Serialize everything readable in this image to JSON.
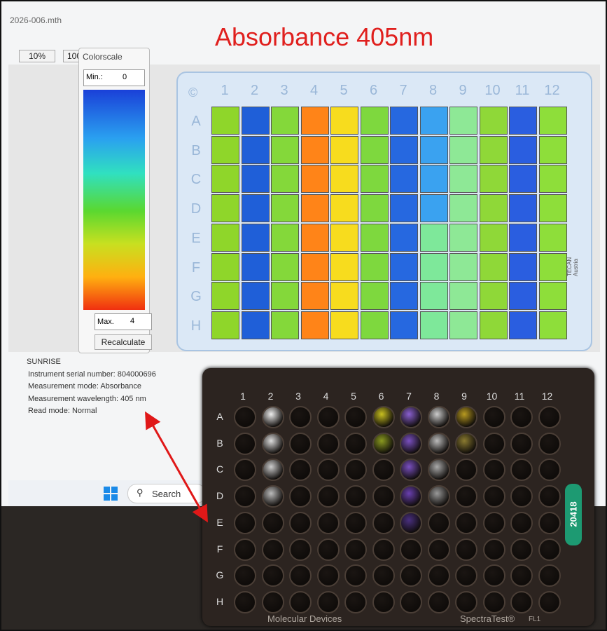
{
  "annotation": {
    "title": "Absorbance 405nm"
  },
  "window": {
    "filename": "2026-006.mth",
    "zoom_buttons": [
      "10%",
      "100"
    ]
  },
  "colorscale": {
    "title": "Colorscale",
    "min_label": "Min.:",
    "min_value": "0",
    "max_label": "Max.",
    "max_value": "4",
    "button": "Recalculate"
  },
  "plate_view": {
    "corner": "©",
    "columns": [
      "1",
      "2",
      "3",
      "4",
      "5",
      "6",
      "7",
      "8",
      "9",
      "10",
      "11",
      "12"
    ],
    "rows": [
      "A",
      "B",
      "C",
      "D",
      "E",
      "F",
      "G",
      "H"
    ],
    "maker": "TECAN Austria",
    "well_colors": [
      [
        "#8fd62a",
        "#1f5fd8",
        "#84d83a",
        "#ff8418",
        "#f7dc1e",
        "#7ed83e",
        "#2668e0",
        "#3aa2f0",
        "#8ee896",
        "#8fd838",
        "#2a5ee0",
        "#8ede3a"
      ],
      [
        "#8fd62a",
        "#1f5fd8",
        "#84d83a",
        "#ff8418",
        "#f7dc1e",
        "#7ed83e",
        "#2668e0",
        "#3aa2f0",
        "#8ee896",
        "#8fd838",
        "#2a5ee0",
        "#8ede3a"
      ],
      [
        "#8fd62a",
        "#1f5fd8",
        "#84d83a",
        "#ff8418",
        "#f7dc1e",
        "#7ed83e",
        "#2668e0",
        "#3aa2f0",
        "#8ee896",
        "#8fd838",
        "#2a5ee0",
        "#8ede3a"
      ],
      [
        "#8fd62a",
        "#1f5fd8",
        "#84d83a",
        "#ff8418",
        "#f7dc1e",
        "#7ed83e",
        "#2668e0",
        "#3aa2f0",
        "#8ee896",
        "#8fd838",
        "#2a5ee0",
        "#8ede3a"
      ],
      [
        "#8fd62a",
        "#1f5fd8",
        "#84d83a",
        "#ff8418",
        "#f7dc1e",
        "#7ed83e",
        "#2668e0",
        "#7ee89a",
        "#8ee896",
        "#8fd838",
        "#2a5ee0",
        "#8ede3a"
      ],
      [
        "#8fd62a",
        "#1f5fd8",
        "#84d83a",
        "#ff8418",
        "#f7dc1e",
        "#7ed83e",
        "#2668e0",
        "#7ee89a",
        "#8ee896",
        "#8fd838",
        "#2a5ee0",
        "#8ede3a"
      ],
      [
        "#8fd62a",
        "#1f5fd8",
        "#84d83a",
        "#ff8418",
        "#f7dc1e",
        "#7ed83e",
        "#2668e0",
        "#7ee89a",
        "#8ee896",
        "#8fd838",
        "#2a5ee0",
        "#8ede3a"
      ],
      [
        "#8fd62a",
        "#1f5fd8",
        "#84d83a",
        "#ff8418",
        "#f7dc1e",
        "#7ed83e",
        "#2668e0",
        "#7ee89a",
        "#8ee896",
        "#8fd838",
        "#2a5ee0",
        "#8ede3a"
      ]
    ]
  },
  "info": {
    "lines": [
      "SUNRISE",
      "Instrument serial number: 804000696",
      "Measurement mode: Absorbance",
      "Measurement wavelength: 405 nm",
      "Read mode: Normal"
    ]
  },
  "taskbar": {
    "search": "Search"
  },
  "physical_plate": {
    "columns": [
      "1",
      "2",
      "3",
      "4",
      "5",
      "6",
      "7",
      "8",
      "9",
      "10",
      "11",
      "12"
    ],
    "rows": [
      "A",
      "B",
      "C",
      "D",
      "E",
      "F",
      "G",
      "H"
    ],
    "label": "20418",
    "brand": "Molecular Devices",
    "product": "SpectraTest®",
    "model": "FL1"
  }
}
